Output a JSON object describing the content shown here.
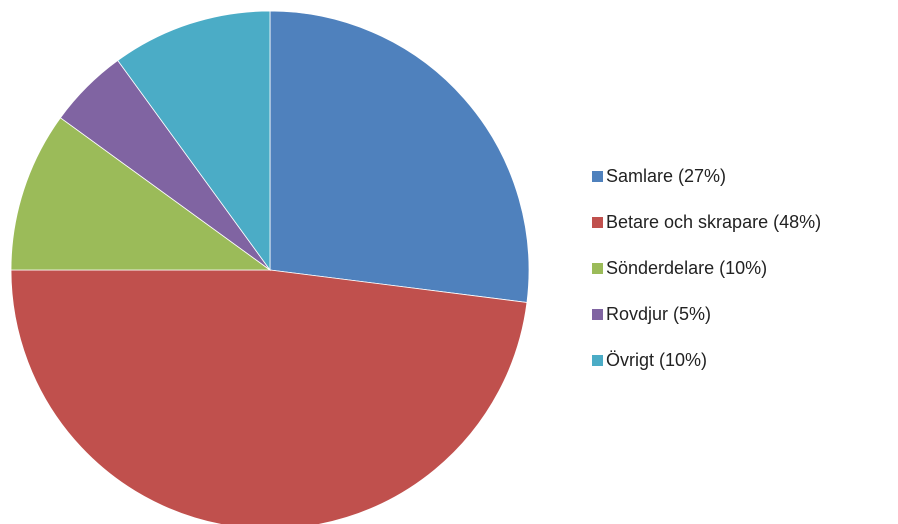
{
  "chart_data": {
    "type": "pie",
    "categories": [
      "Samlare (27%)",
      "Betare och skrapare (48%)",
      "Sönderdelare (10%)",
      "Rovdjur (5%)",
      "Övrigt (10%)"
    ],
    "values": [
      27,
      48,
      10,
      5,
      10
    ],
    "colors": [
      "#4f81bd",
      "#c0504d",
      "#9bbb59",
      "#8064a2",
      "#4bacc6"
    ],
    "legend": "right"
  }
}
